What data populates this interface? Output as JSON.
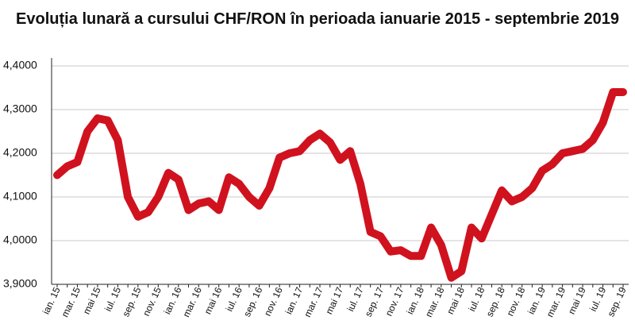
{
  "chart_data": {
    "type": "line",
    "title": "Evoluția lunară a cursului CHF/RON în perioada ianuarie 2015 - septembrie 2019",
    "categories": [
      "ian. 15",
      null,
      "mar. 15",
      null,
      "mai 15",
      null,
      "iul. 15",
      null,
      "sep. 15",
      null,
      "nov. 15",
      null,
      "ian. 16",
      null,
      "mar. 16",
      null,
      "mai 16",
      null,
      "iul. 16",
      null,
      "sep. 16",
      null,
      "nov. 16",
      null,
      "ian. 17",
      null,
      "mar. 17",
      null,
      "mai 17",
      null,
      "iul. 17",
      null,
      "sep. 17",
      null,
      "nov. 17",
      null,
      "ian. 18",
      null,
      "mar. 18",
      null,
      "mai 18",
      null,
      "iul. 18",
      null,
      "sep. 18",
      null,
      "nov. 18",
      null,
      "ian. 19",
      null,
      "mar. 19",
      null,
      "mai 19",
      null,
      "iul. 19",
      null,
      "sep. 19"
    ],
    "values": [
      4.15,
      4.17,
      4.18,
      4.25,
      4.28,
      4.275,
      4.23,
      4.1,
      4.055,
      4.065,
      4.1,
      4.155,
      4.14,
      4.07,
      4.085,
      4.09,
      4.07,
      4.145,
      4.13,
      4.1,
      4.08,
      4.12,
      4.19,
      4.2,
      4.205,
      4.23,
      4.245,
      4.225,
      4.185,
      4.205,
      4.13,
      4.02,
      4.01,
      3.975,
      3.978,
      3.965,
      3.965,
      4.03,
      3.99,
      3.915,
      3.93,
      4.03,
      4.005,
      4.06,
      4.115,
      4.09,
      4.1,
      4.12,
      4.16,
      4.175,
      4.2,
      4.205,
      4.21,
      4.23,
      4.27,
      4.34,
      4.34
    ],
    "color": "#d0121e",
    "ylim": [
      3.9,
      4.4
    ],
    "yticks": [
      {
        "value": 3.9,
        "label": "3,9000"
      },
      {
        "value": 4.0,
        "label": "4,0000"
      },
      {
        "value": 4.1,
        "label": "4,1000"
      },
      {
        "value": 4.2,
        "label": "4,2000"
      },
      {
        "value": 4.3,
        "label": "4,3000"
      },
      {
        "value": 4.4,
        "label": "4,4000"
      }
    ],
    "grid": true
  }
}
